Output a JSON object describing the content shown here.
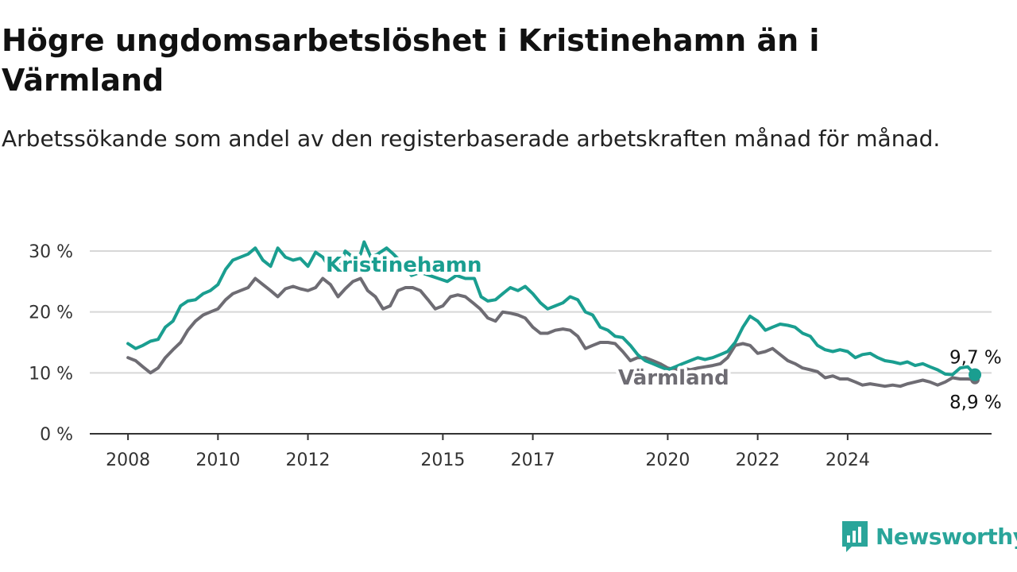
{
  "title": "Högre ungdomsarbetslöshet i Kristinehamn än i Värmland",
  "subtitle": "Arbetssökande som andel av den registerbaserade arbetskraften månad för månad.",
  "brand": "Newsworthy",
  "colors": {
    "kristinehamn": "#1a9e90",
    "varmland": "#6e6c73",
    "grid": "#d7d7d7",
    "axis": "#333333",
    "brand": "#2aa59a"
  },
  "chart_data": {
    "type": "line",
    "title": "Högre ungdomsarbetslöshet i Kristinehamn än i Värmland",
    "subtitle": "Arbetssökande som andel av den registerbaserade arbetskraften månad för månad.",
    "xlabel": "",
    "ylabel": "",
    "ylim": [
      0,
      30
    ],
    "yticks": [
      0,
      10,
      20,
      30
    ],
    "ytick_labels": [
      "0 %",
      "10 %",
      "20 %",
      "30 %"
    ],
    "xticks": [
      2008,
      2010,
      2012,
      2015,
      2017,
      2020,
      2022,
      2024
    ],
    "xtick_labels": [
      "2008",
      "2010",
      "2012",
      "2015",
      "2017",
      "2020",
      "2022",
      "2024"
    ],
    "grid": true,
    "legend": "inline labels",
    "series": [
      {
        "name": "Kristinehamn",
        "end_label": "9,7 %",
        "points": [
          [
            2008.0,
            14.8
          ],
          [
            2008.17,
            14.0
          ],
          [
            2008.33,
            14.5
          ],
          [
            2008.5,
            15.2
          ],
          [
            2008.67,
            15.5
          ],
          [
            2008.83,
            17.5
          ],
          [
            2009.0,
            18.5
          ],
          [
            2009.17,
            21.0
          ],
          [
            2009.33,
            21.8
          ],
          [
            2009.5,
            22.0
          ],
          [
            2009.67,
            23.0
          ],
          [
            2009.83,
            23.5
          ],
          [
            2010.0,
            24.5
          ],
          [
            2010.17,
            27.0
          ],
          [
            2010.33,
            28.5
          ],
          [
            2010.5,
            29.0
          ],
          [
            2010.67,
            29.5
          ],
          [
            2010.83,
            30.5
          ],
          [
            2011.0,
            28.5
          ],
          [
            2011.17,
            27.5
          ],
          [
            2011.33,
            30.5
          ],
          [
            2011.5,
            29.0
          ],
          [
            2011.67,
            28.5
          ],
          [
            2011.83,
            28.8
          ],
          [
            2012.0,
            27.5
          ],
          [
            2012.17,
            29.8
          ],
          [
            2012.33,
            29.0
          ],
          [
            2012.5,
            27.0
          ],
          [
            2012.67,
            26.5
          ],
          [
            2012.83,
            30.0
          ],
          [
            2013.0,
            29.0
          ],
          [
            2013.17,
            29.5
          ],
          [
            2013.25,
            31.5
          ],
          [
            2013.4,
            29.0
          ],
          [
            2013.55,
            29.5
          ],
          [
            2013.75,
            30.5
          ],
          [
            2013.9,
            29.5
          ],
          [
            2014.1,
            28.0
          ],
          [
            2014.3,
            26.0
          ],
          [
            2014.5,
            26.5
          ],
          [
            2014.7,
            26.0
          ],
          [
            2014.9,
            25.5
          ],
          [
            2015.1,
            25.0
          ],
          [
            2015.3,
            26.0
          ],
          [
            2015.5,
            25.5
          ],
          [
            2015.7,
            25.5
          ],
          [
            2015.85,
            22.5
          ],
          [
            2016.0,
            21.8
          ],
          [
            2016.17,
            22.0
          ],
          [
            2016.33,
            23.0
          ],
          [
            2016.5,
            24.0
          ],
          [
            2016.67,
            23.5
          ],
          [
            2016.83,
            24.2
          ],
          [
            2017.0,
            23.0
          ],
          [
            2017.17,
            21.5
          ],
          [
            2017.33,
            20.5
          ],
          [
            2017.5,
            21.0
          ],
          [
            2017.67,
            21.5
          ],
          [
            2017.83,
            22.5
          ],
          [
            2018.0,
            22.0
          ],
          [
            2018.17,
            20.0
          ],
          [
            2018.33,
            19.5
          ],
          [
            2018.5,
            17.5
          ],
          [
            2018.67,
            17.0
          ],
          [
            2018.83,
            16.0
          ],
          [
            2019.0,
            15.8
          ],
          [
            2019.17,
            14.5
          ],
          [
            2019.33,
            13.0
          ],
          [
            2019.5,
            12.0
          ],
          [
            2019.67,
            11.5
          ],
          [
            2019.83,
            11.0
          ],
          [
            2020.0,
            10.5
          ],
          [
            2020.17,
            11.0
          ],
          [
            2020.33,
            11.5
          ],
          [
            2020.5,
            12.0
          ],
          [
            2020.67,
            12.5
          ],
          [
            2020.83,
            12.2
          ],
          [
            2021.0,
            12.5
          ],
          [
            2021.17,
            13.0
          ],
          [
            2021.33,
            13.5
          ],
          [
            2021.5,
            15.0
          ],
          [
            2021.67,
            17.5
          ],
          [
            2021.83,
            19.3
          ],
          [
            2022.0,
            18.5
          ],
          [
            2022.17,
            17.0
          ],
          [
            2022.33,
            17.5
          ],
          [
            2022.5,
            18.0
          ],
          [
            2022.67,
            17.8
          ],
          [
            2022.83,
            17.5
          ],
          [
            2023.0,
            16.5
          ],
          [
            2023.17,
            16.0
          ],
          [
            2023.33,
            14.5
          ],
          [
            2023.5,
            13.8
          ],
          [
            2023.67,
            13.5
          ],
          [
            2023.83,
            13.8
          ],
          [
            2024.0,
            13.5
          ],
          [
            2024.17,
            12.5
          ],
          [
            2024.33,
            13.0
          ],
          [
            2024.5,
            13.2
          ],
          [
            2024.67,
            12.5
          ],
          [
            2024.83,
            12.0
          ],
          [
            2025.0,
            11.8
          ],
          [
            2025.17,
            11.5
          ],
          [
            2025.33,
            11.8
          ],
          [
            2025.5,
            11.2
          ],
          [
            2025.67,
            11.5
          ],
          [
            2025.83,
            11.0
          ],
          [
            2026.0,
            10.5
          ],
          [
            2026.17,
            9.8
          ],
          [
            2026.33,
            9.7
          ],
          [
            2026.5,
            10.8
          ],
          [
            2026.67,
            11.0
          ],
          [
            2026.83,
            9.7
          ]
        ]
      },
      {
        "name": "Värmland",
        "end_label": "8,9 %",
        "points": [
          [
            2008.0,
            12.5
          ],
          [
            2008.17,
            12.0
          ],
          [
            2008.33,
            11.0
          ],
          [
            2008.5,
            10.0
          ],
          [
            2008.67,
            10.8
          ],
          [
            2008.83,
            12.5
          ],
          [
            2009.0,
            13.8
          ],
          [
            2009.17,
            15.0
          ],
          [
            2009.33,
            17.0
          ],
          [
            2009.5,
            18.5
          ],
          [
            2009.67,
            19.5
          ],
          [
            2009.83,
            20.0
          ],
          [
            2010.0,
            20.5
          ],
          [
            2010.17,
            22.0
          ],
          [
            2010.33,
            23.0
          ],
          [
            2010.5,
            23.5
          ],
          [
            2010.67,
            24.0
          ],
          [
            2010.83,
            25.5
          ],
          [
            2011.0,
            24.5
          ],
          [
            2011.17,
            23.5
          ],
          [
            2011.33,
            22.5
          ],
          [
            2011.5,
            23.8
          ],
          [
            2011.67,
            24.2
          ],
          [
            2011.83,
            23.8
          ],
          [
            2012.0,
            23.5
          ],
          [
            2012.17,
            24.0
          ],
          [
            2012.33,
            25.5
          ],
          [
            2012.5,
            24.5
          ],
          [
            2012.67,
            22.5
          ],
          [
            2012.83,
            23.8
          ],
          [
            2013.0,
            25.0
          ],
          [
            2013.17,
            25.5
          ],
          [
            2013.33,
            23.5
          ],
          [
            2013.5,
            22.5
          ],
          [
            2013.67,
            20.5
          ],
          [
            2013.83,
            21.0
          ],
          [
            2014.0,
            23.5
          ],
          [
            2014.17,
            24.0
          ],
          [
            2014.33,
            24.0
          ],
          [
            2014.5,
            23.5
          ],
          [
            2014.67,
            22.0
          ],
          [
            2014.83,
            20.5
          ],
          [
            2015.0,
            21.0
          ],
          [
            2015.17,
            22.5
          ],
          [
            2015.33,
            22.8
          ],
          [
            2015.5,
            22.5
          ],
          [
            2015.67,
            21.5
          ],
          [
            2015.83,
            20.5
          ],
          [
            2016.0,
            19.0
          ],
          [
            2016.17,
            18.5
          ],
          [
            2016.33,
            20.0
          ],
          [
            2016.5,
            19.8
          ],
          [
            2016.67,
            19.5
          ],
          [
            2016.83,
            19.0
          ],
          [
            2017.0,
            17.5
          ],
          [
            2017.17,
            16.5
          ],
          [
            2017.33,
            16.5
          ],
          [
            2017.5,
            17.0
          ],
          [
            2017.67,
            17.2
          ],
          [
            2017.83,
            17.0
          ],
          [
            2018.0,
            16.0
          ],
          [
            2018.17,
            14.0
          ],
          [
            2018.33,
            14.5
          ],
          [
            2018.5,
            15.0
          ],
          [
            2018.67,
            15.0
          ],
          [
            2018.83,
            14.8
          ],
          [
            2019.0,
            13.5
          ],
          [
            2019.17,
            12.0
          ],
          [
            2019.33,
            12.5
          ],
          [
            2019.5,
            12.5
          ],
          [
            2019.67,
            12.0
          ],
          [
            2019.83,
            11.5
          ],
          [
            2020.0,
            10.8
          ],
          [
            2020.17,
            10.5
          ],
          [
            2020.33,
            10.8
          ],
          [
            2020.5,
            10.5
          ],
          [
            2020.67,
            10.8
          ],
          [
            2020.83,
            11.0
          ],
          [
            2021.0,
            11.2
          ],
          [
            2021.17,
            11.5
          ],
          [
            2021.33,
            12.5
          ],
          [
            2021.5,
            14.5
          ],
          [
            2021.67,
            14.8
          ],
          [
            2021.83,
            14.5
          ],
          [
            2022.0,
            13.2
          ],
          [
            2022.17,
            13.5
          ],
          [
            2022.33,
            14.0
          ],
          [
            2022.5,
            13.0
          ],
          [
            2022.67,
            12.0
          ],
          [
            2022.83,
            11.5
          ],
          [
            2023.0,
            10.8
          ],
          [
            2023.17,
            10.5
          ],
          [
            2023.33,
            10.2
          ],
          [
            2023.5,
            9.2
          ],
          [
            2023.67,
            9.5
          ],
          [
            2023.83,
            9.0
          ],
          [
            2024.0,
            9.0
          ],
          [
            2024.17,
            8.5
          ],
          [
            2024.33,
            8.0
          ],
          [
            2024.5,
            8.2
          ],
          [
            2024.67,
            8.0
          ],
          [
            2024.83,
            7.8
          ],
          [
            2025.0,
            8.0
          ],
          [
            2025.17,
            7.8
          ],
          [
            2025.33,
            8.2
          ],
          [
            2025.5,
            8.5
          ],
          [
            2025.67,
            8.8
          ],
          [
            2025.83,
            8.5
          ],
          [
            2026.0,
            8.0
          ],
          [
            2026.17,
            8.5
          ],
          [
            2026.33,
            9.2
          ],
          [
            2026.5,
            9.0
          ],
          [
            2026.67,
            9.0
          ],
          [
            2026.83,
            8.9
          ]
        ]
      }
    ]
  }
}
